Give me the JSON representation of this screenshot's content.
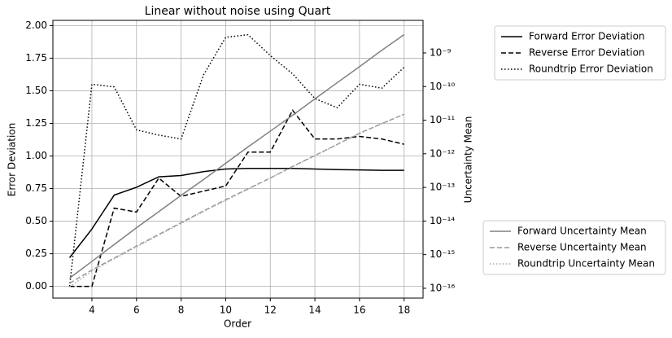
{
  "chart_data": {
    "type": "line",
    "title": "Linear without noise using Quart",
    "xlabel": "Order",
    "ylabel": "Error Deviation",
    "y2label": "Uncertainty Mean",
    "x": [
      3,
      4,
      5,
      6,
      7,
      8,
      9,
      10,
      11,
      12,
      13,
      14,
      15,
      16,
      17,
      18
    ],
    "xlim": [
      2.25,
      18.85
    ],
    "xticks": [
      4,
      6,
      8,
      10,
      12,
      14,
      16,
      18
    ],
    "ylim": [
      -0.09,
      2.04
    ],
    "yticks": [
      {
        "value": 0,
        "label": "0.00"
      },
      {
        "value": 0.25,
        "label": "0.25"
      },
      {
        "value": 0.5,
        "label": "0.50"
      },
      {
        "value": 0.75,
        "label": "0.75"
      },
      {
        "value": 1,
        "label": "1.00"
      },
      {
        "value": 1.25,
        "label": "1.25"
      },
      {
        "value": 1.5,
        "label": "1.50"
      },
      {
        "value": 1.75,
        "label": "1.75"
      },
      {
        "value": 2,
        "label": "2.00"
      }
    ],
    "y2lim": [
      5.1e-17,
      9.3e-09
    ],
    "y2log": true,
    "y2ticks": [
      {
        "value": 1e-16,
        "label": "10⁻¹⁶"
      },
      {
        "value": 1e-15,
        "label": "10⁻¹⁵"
      },
      {
        "value": 1e-14,
        "label": "10⁻¹⁴"
      },
      {
        "value": 1e-13,
        "label": "10⁻¹³"
      },
      {
        "value": 1e-12,
        "label": "10⁻¹²"
      },
      {
        "value": 1e-11,
        "label": "10⁻¹¹"
      },
      {
        "value": 1e-10,
        "label": "10⁻¹⁰"
      },
      {
        "value": 1e-09,
        "label": "10⁻⁹"
      }
    ],
    "grid": true,
    "series": [
      {
        "name": "Forward Error Deviation",
        "color": "#000000",
        "linestyle": "solid",
        "axis": "y",
        "values": [
          0.22,
          0.44,
          0.7,
          0.76,
          0.84,
          0.85,
          0.88,
          0.9,
          0.905,
          0.905,
          0.905,
          0.9,
          0.895,
          0.893,
          0.89,
          0.89
        ]
      },
      {
        "name": "Reverse Error Deviation",
        "color": "#000000",
        "linestyle": "dashed",
        "axis": "y",
        "values": [
          0.0,
          0.0,
          0.6,
          0.57,
          0.83,
          0.69,
          0.73,
          0.77,
          1.03,
          1.03,
          1.35,
          1.13,
          1.13,
          1.15,
          1.13,
          1.09
        ]
      },
      {
        "name": "Roundtrip Error Deviation",
        "color": "#000000",
        "linestyle": "dotted",
        "axis": "y",
        "values": [
          0.0,
          1.55,
          1.53,
          1.2,
          1.16,
          1.13,
          1.62,
          1.91,
          1.93,
          1.77,
          1.63,
          1.44,
          1.37,
          1.55,
          1.52,
          1.68
        ]
      },
      {
        "name": "Forward Uncertainty Mean",
        "color": "#808080",
        "linestyle": "solid",
        "axis": "y2",
        "values": [
          2e-16,
          6.3e-16,
          2e-15,
          6.3e-15,
          1.9e-14,
          5.8e-14,
          1.7e-13,
          5.2e-13,
          1.6e-12,
          4.7e-12,
          1.4e-11,
          4.3e-11,
          1.3e-10,
          3.9e-10,
          1.2e-09,
          3.5e-09
        ]
      },
      {
        "name": "Reverse Uncertainty Mean",
        "color": "#999999",
        "linestyle": "dashed",
        "axis": "y2",
        "values": [
          1.4e-16,
          3.5e-16,
          7.9e-16,
          1.8e-15,
          4e-15,
          8.9e-15,
          2e-14,
          4.3e-14,
          9.1e-14,
          1.9e-13,
          4.2e-13,
          8.9e-13,
          1.9e-12,
          4.1e-12,
          7.9e-12,
          1.5e-11
        ]
      },
      {
        "name": "Roundtrip Uncertainty Mean",
        "color": "#aaaaaa",
        "linestyle": "dotted",
        "axis": "y2",
        "values": [
          1.1e-16,
          3.2e-16,
          7.5e-16,
          1.7e-15,
          3.8e-15,
          8.5e-15,
          1.9e-14,
          4.1e-14,
          8.8e-14,
          1.9e-13,
          4.1e-13,
          8.7e-13,
          1.9e-12,
          4e-12,
          7.8e-12,
          1.5e-11
        ]
      }
    ]
  }
}
